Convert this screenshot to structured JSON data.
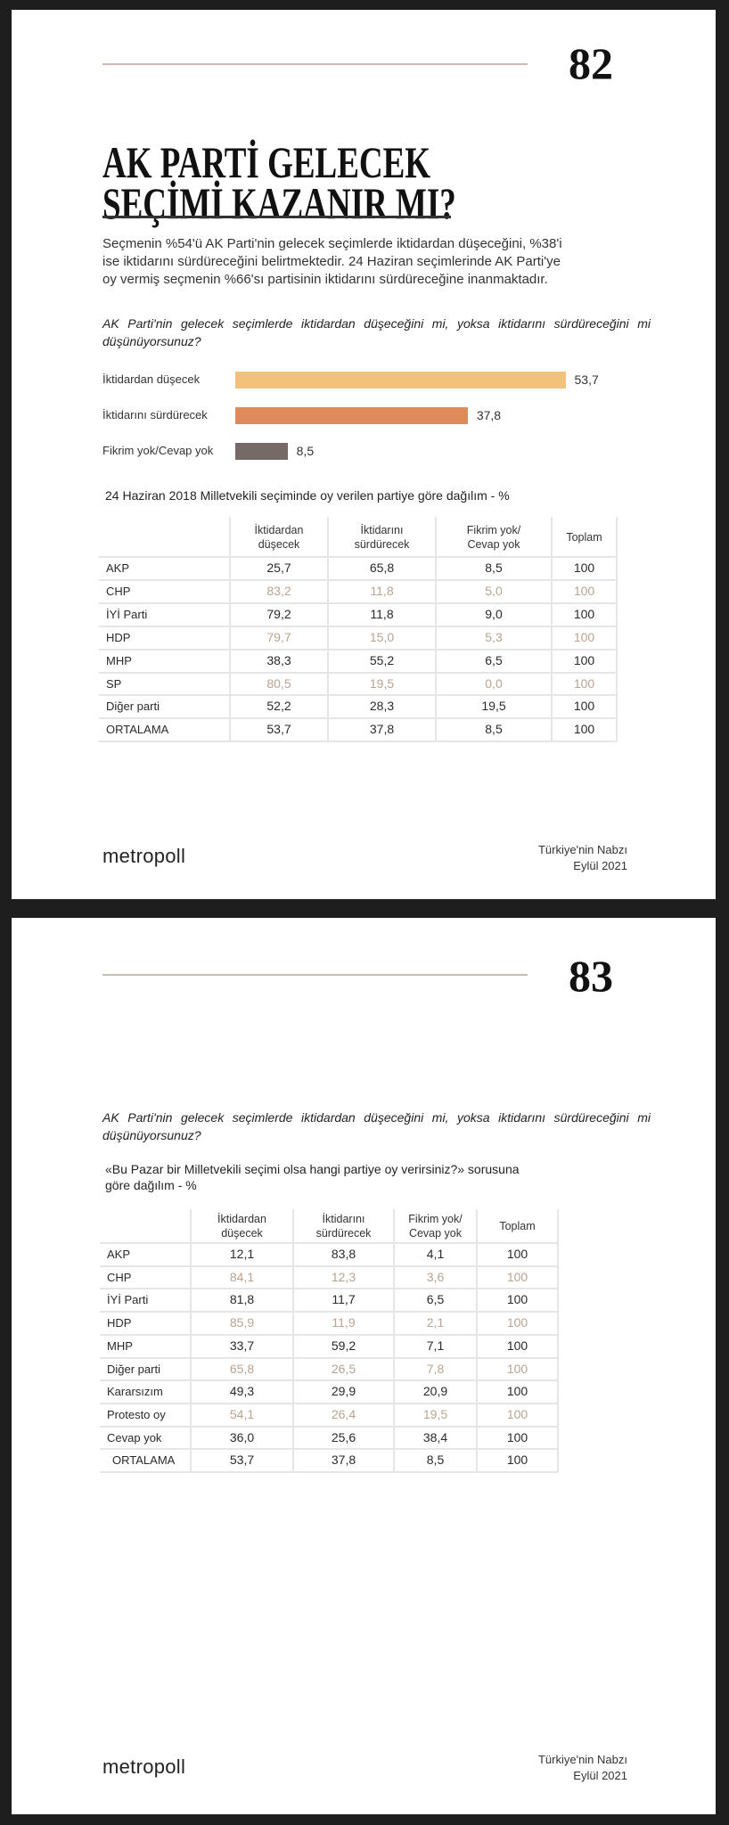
{
  "colors": {
    "bar_fall": "#f2c27d",
    "bar_continue": "#de8a5a",
    "bar_none": "#756a66",
    "rule": "#cdb9ad",
    "light_row_text": "#b9a391"
  },
  "page1": {
    "page_number": "82",
    "title_lines": [
      "AK PARTİ GELECEK",
      "SEÇİMİ KAZANIR MI?"
    ],
    "paragraph_lines": [
      "Seçmenin %54'ü AK Parti'nin gelecek seçimlerde iktidardan düşeceğini, %38'i",
      "ise  iktidarını sürdüreceğini belirtmektedir. 24 Haziran seçimlerinde AK Parti'ye",
      "oy vermiş seçmenin %66'sı partisinin iktidarını sürdüreceğine inanmaktadır."
    ],
    "question": "AK Parti'nin gelecek seçimlerde iktidardan düşeceğini mi, yoksa iktidarını sürdüreceğini mi düşünüyorsunuz?",
    "chart_data": {
      "type": "bar",
      "orientation": "horizontal",
      "categories": [
        "İktidardan düşecek",
        "İktidarını sürdürecek",
        "Fikrim yok/Cevap yok"
      ],
      "values": [
        53.7,
        37.8,
        8.5
      ],
      "value_labels": [
        "53,7",
        "37,8",
        "8,5"
      ],
      "colors": [
        "#f2c27d",
        "#de8a5a",
        "#756a66"
      ]
    },
    "table": {
      "caption": "24 Haziran 2018 Milletvekili seçiminde oy verilen partiye göre dağılım - %",
      "headers": [
        "İktidardan\ndüşecek",
        "İktidarını\nsürdürecek",
        "Fikrim yok/\nCevap yok",
        "Toplam"
      ],
      "rows": [
        {
          "label": "AKP",
          "values": [
            "25,7",
            "65,8",
            "8,5",
            "100"
          ],
          "light": false
        },
        {
          "label": "CHP",
          "values": [
            "83,2",
            "11,8",
            "5,0",
            "100"
          ],
          "light": true
        },
        {
          "label": "İYİ Parti",
          "values": [
            "79,2",
            "11,8",
            "9,0",
            "100"
          ],
          "light": false
        },
        {
          "label": "HDP",
          "values": [
            "79,7",
            "15,0",
            "5,3",
            "100"
          ],
          "light": true
        },
        {
          "label": "MHP",
          "values": [
            "38,3",
            "55,2",
            "6,5",
            "100"
          ],
          "light": false
        },
        {
          "label": "SP",
          "values": [
            "80,5",
            "19,5",
            "0,0",
            "100"
          ],
          "light": true
        },
        {
          "label": "Diğer parti",
          "values": [
            "52,2",
            "28,3",
            "19,5",
            "100"
          ],
          "light": false
        },
        {
          "label": "ORTALAMA",
          "values": [
            "53,7",
            "37,8",
            "8,5",
            "100"
          ],
          "light": false
        }
      ]
    },
    "footer": {
      "logo_text": "metropoll",
      "report_name": "Türkiye'nin Nabzı",
      "date": "Eylül 2021"
    }
  },
  "page2": {
    "page_number": "83",
    "question": "AK Parti'nin gelecek seçimlerde iktidardan düşeceğini mi, yoksa iktidarını sürdüreceğini mi düşünüyorsunuz?",
    "table": {
      "caption_lines": [
        "«Bu Pazar bir Milletvekili seçimi olsa hangi partiye oy verirsiniz?» sorusuna",
        "göre dağılım - %"
      ],
      "headers": [
        "İktidardan\ndüşecek",
        "İktidarını\nsürdürecek",
        "Fikrim yok/\nCevap yok",
        "Toplam"
      ],
      "rows": [
        {
          "label": "AKP",
          "values": [
            "12,1",
            "83,8",
            "4,1",
            "100"
          ],
          "light": false
        },
        {
          "label": "CHP",
          "values": [
            "84,1",
            "12,3",
            "3,6",
            "100"
          ],
          "light": true
        },
        {
          "label": "İYİ Parti",
          "values": [
            "81,8",
            "11,7",
            "6,5",
            "100"
          ],
          "light": false
        },
        {
          "label": "HDP",
          "values": [
            "85,9",
            "11,9",
            "2,1",
            "100"
          ],
          "light": true
        },
        {
          "label": "MHP",
          "values": [
            "33,7",
            "59,2",
            "7,1",
            "100"
          ],
          "light": false
        },
        {
          "label": "Diğer parti",
          "values": [
            "65,8",
            "26,5",
            "7,8",
            "100"
          ],
          "light": true
        },
        {
          "label": "Kararsızım",
          "values": [
            "49,3",
            "29,9",
            "20,9",
            "100"
          ],
          "light": false
        },
        {
          "label": "Protesto oy",
          "values": [
            "54,1",
            "26,4",
            "19,5",
            "100"
          ],
          "light": true
        },
        {
          "label": "Cevap yok",
          "values": [
            "36,0",
            "25,6",
            "38,4",
            "100"
          ],
          "light": false
        },
        {
          "label": "ORTALAMA",
          "values": [
            "53,7",
            "37,8",
            "8,5",
            "100"
          ],
          "light": false
        }
      ]
    },
    "footer": {
      "logo_text": "metropoll",
      "report_name": "Türkiye'nin Nabzı",
      "date": "Eylül 2021"
    }
  }
}
